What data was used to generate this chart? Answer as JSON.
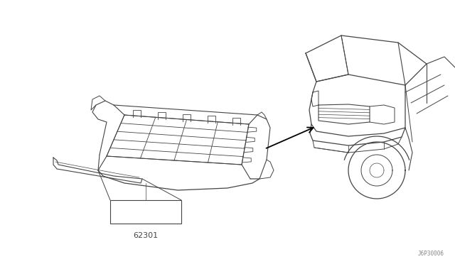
{
  "bg_color": "#ffffff",
  "line_color": "#444444",
  "part_label": "62301",
  "diagram_code": "J6P30006",
  "fig_width": 6.4,
  "fig_height": 3.72,
  "dpi": 100
}
